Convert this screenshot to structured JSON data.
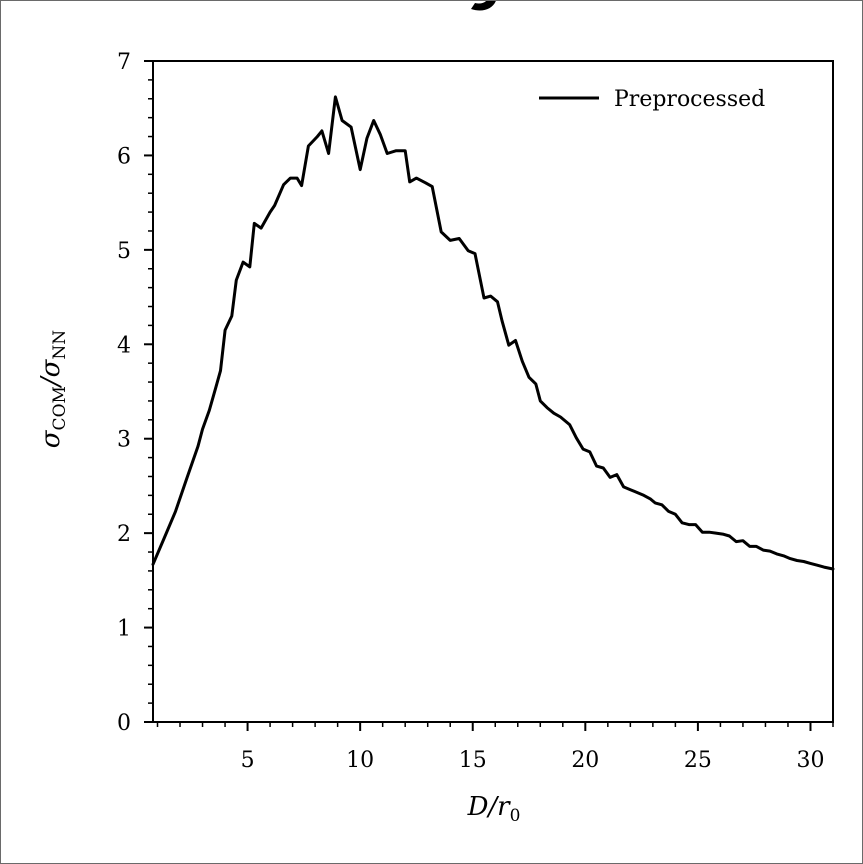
{
  "chart_data": {
    "type": "line",
    "title": "",
    "xlabel": {
      "main": "D/r",
      "sub": "0"
    },
    "ylabel": {
      "main": "σ",
      "sub_num": "COM",
      "mid": "/σ",
      "sub_den": "NN"
    },
    "xlim": [
      0.8,
      31
    ],
    "ylim": [
      0,
      7
    ],
    "xticks": [
      5,
      10,
      15,
      20,
      25,
      30
    ],
    "yticks": [
      0,
      1,
      2,
      3,
      4,
      5,
      6,
      7
    ],
    "x_minor_step": 1,
    "y_minor_step": 0.2,
    "grid": false,
    "legend_position": "top-right",
    "series": [
      {
        "name": "Preprocessed",
        "color": "#000000",
        "x": [
          0.8,
          1.3,
          1.8,
          2.3,
          2.8,
          3.0,
          3.3,
          3.6,
          3.8,
          4.0,
          4.3,
          4.5,
          4.8,
          5.1,
          5.3,
          5.6,
          6.0,
          6.2,
          6.6,
          6.9,
          7.2,
          7.4,
          7.7,
          8.1,
          8.3,
          8.6,
          8.9,
          9.2,
          9.6,
          10.0,
          10.3,
          10.6,
          10.9,
          11.2,
          11.6,
          12.0,
          12.2,
          12.5,
          12.9,
          13.2,
          13.6,
          14.0,
          14.4,
          14.8,
          15.1,
          15.5,
          15.8,
          16.1,
          16.3,
          16.6,
          16.9,
          17.2,
          17.5,
          17.8,
          18.0,
          18.3,
          18.6,
          18.9,
          19.3,
          19.6,
          19.9,
          20.2,
          20.5,
          20.8,
          21.1,
          21.4,
          21.7,
          22.0,
          22.3,
          22.6,
          22.9,
          23.1,
          23.4,
          23.7,
          24.0,
          24.3,
          24.6,
          24.9,
          25.2,
          25.5,
          25.8,
          26.1,
          26.4,
          26.7,
          27.0,
          27.3,
          27.6,
          27.9,
          28.2,
          28.5,
          28.8,
          29.1,
          29.4,
          29.7,
          30.0,
          30.3,
          30.6,
          31.0
        ],
        "values": [
          1.67,
          1.95,
          2.23,
          2.58,
          2.92,
          3.1,
          3.3,
          3.55,
          3.72,
          4.15,
          4.3,
          4.68,
          4.87,
          4.82,
          5.28,
          5.23,
          5.4,
          5.47,
          5.69,
          5.76,
          5.76,
          5.68,
          6.1,
          6.2,
          6.26,
          6.02,
          6.62,
          6.37,
          6.3,
          5.85,
          6.18,
          6.37,
          6.22,
          6.02,
          6.05,
          6.05,
          5.72,
          5.76,
          5.71,
          5.67,
          5.19,
          5.1,
          5.12,
          4.99,
          4.96,
          4.49,
          4.51,
          4.45,
          4.25,
          3.99,
          4.04,
          3.82,
          3.65,
          3.58,
          3.4,
          3.33,
          3.27,
          3.23,
          3.15,
          3.01,
          2.89,
          2.86,
          2.71,
          2.69,
          2.59,
          2.62,
          2.49,
          2.46,
          2.43,
          2.4,
          2.36,
          2.32,
          2.3,
          2.23,
          2.2,
          2.11,
          2.09,
          2.09,
          2.01,
          2.01,
          2.0,
          1.99,
          1.97,
          1.91,
          1.92,
          1.86,
          1.86,
          1.82,
          1.81,
          1.78,
          1.76,
          1.73,
          1.71,
          1.7,
          1.68,
          1.66,
          1.64,
          1.62
        ]
      }
    ]
  }
}
